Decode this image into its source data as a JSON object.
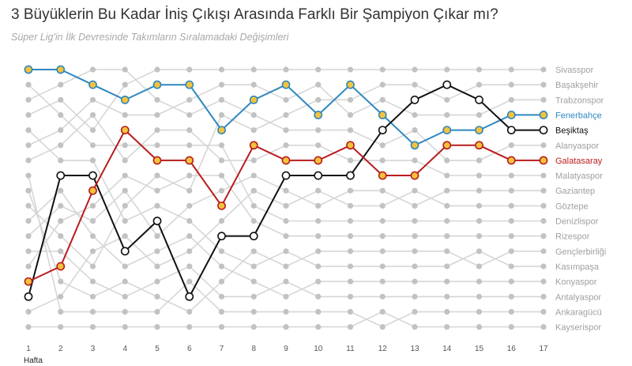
{
  "title": "3 Büyüklerin Bu Kadar İniş Çıkışı Arasında Farklı Bir Şampiyon Çıkar mı?",
  "subtitle": "Süper Lig'in İlk Devresinde Takımların Sıralamadaki Değişimleri",
  "colors": {
    "grey_line": "#d6d6d6",
    "grey_dot": "#c2c2c2",
    "fenerbahce_line": "#2f87bf",
    "fenerbahce_fill": "#f5c33b",
    "galatasaray_line": "#b81c1c",
    "galatasaray_fill": "#f5c33b",
    "besiktas_line": "#111111",
    "besiktas_fill": "#ffffff"
  },
  "chart_data": {
    "type": "line",
    "title": "3 Büyüklerin Bu Kadar İniş Çıkışı Arasında Farklı Bir Şampiyon Çıkar mı?",
    "subtitle": "Süper Lig'in İlk Devresinde Takımların Sıralamadaki Değişimleri",
    "xlabel": "Hafta",
    "ylabel": "",
    "x": [
      1,
      2,
      3,
      4,
      5,
      6,
      7,
      8,
      9,
      10,
      11,
      12,
      13,
      14,
      15,
      16,
      17
    ],
    "ylim": [
      1,
      18
    ],
    "y_inverted": true,
    "grid": false,
    "final_rank_labels": [
      "Sivasspor",
      "Başakşehir",
      "Trabzonspor",
      "Fenerbahçe",
      "Beşiktaş",
      "Alanyaspor",
      "Galatasaray",
      "Malatyaspor",
      "Gaziantep",
      "Göztepe",
      "Denizlispor",
      "Rizespor",
      "Gençlerbirliği",
      "Kasımpaşa",
      "Konyaspor",
      "Antalyaspor",
      "Ankaragücü",
      "Kayserispor"
    ],
    "series": [
      {
        "name": "Fenerbahçe",
        "highlight": true,
        "values": [
          1,
          1,
          2,
          3,
          2,
          2,
          5,
          3,
          2,
          4,
          2,
          4,
          6,
          5,
          5,
          4,
          4
        ]
      },
      {
        "name": "Beşiktaş",
        "highlight": true,
        "values": [
          16,
          8,
          8,
          13,
          11,
          16,
          12,
          12,
          8,
          8,
          8,
          5,
          3,
          2,
          3,
          5,
          5
        ]
      },
      {
        "name": "Galatasaray",
        "highlight": true,
        "values": [
          15,
          14,
          9,
          5,
          7,
          7,
          10,
          6,
          7,
          7,
          6,
          8,
          8,
          6,
          6,
          7,
          7
        ]
      },
      {
        "name": "Sivasspor",
        "highlight": false,
        "values": [
          4,
          3,
          5,
          2,
          1,
          1,
          1,
          1,
          1,
          1,
          1,
          1,
          1,
          1,
          1,
          1,
          1
        ]
      },
      {
        "name": "Başakşehir",
        "highlight": false,
        "values": [
          10,
          12,
          14,
          10,
          8,
          9,
          4,
          5,
          4,
          3,
          3,
          2,
          2,
          3,
          2,
          2,
          2
        ]
      },
      {
        "name": "Trabzonspor",
        "highlight": false,
        "values": [
          6,
          5,
          3,
          4,
          4,
          3,
          2,
          2,
          3,
          2,
          4,
          3,
          4,
          4,
          4,
          3,
          3
        ]
      },
      {
        "name": "Alanyaspor",
        "highlight": false,
        "values": [
          3,
          2,
          1,
          1,
          3,
          4,
          3,
          4,
          5,
          5,
          5,
          6,
          5,
          7,
          7,
          6,
          6
        ]
      },
      {
        "name": "Malatyaspor",
        "highlight": false,
        "values": [
          7,
          6,
          4,
          7,
          5,
          5,
          7,
          7,
          6,
          6,
          7,
          7,
          7,
          8,
          8,
          8,
          8
        ]
      },
      {
        "name": "Gaziantep",
        "highlight": false,
        "values": [
          12,
          10,
          11,
          9,
          12,
          10,
          9,
          8,
          9,
          10,
          9,
          9,
          10,
          9,
          9,
          9,
          9
        ]
      },
      {
        "name": "Göztepe",
        "highlight": false,
        "values": [
          17,
          16,
          13,
          12,
          14,
          13,
          11,
          9,
          10,
          9,
          10,
          10,
          9,
          10,
          10,
          10,
          10
        ]
      },
      {
        "name": "Denizlispor",
        "highlight": false,
        "values": [
          2,
          4,
          6,
          6,
          6,
          6,
          6,
          10,
          11,
          11,
          11,
          11,
          11,
          11,
          11,
          11,
          11
        ]
      },
      {
        "name": "Rizespor",
        "highlight": false,
        "values": [
          14,
          11,
          10,
          8,
          9,
          8,
          8,
          11,
          12,
          12,
          12,
          12,
          12,
          12,
          12,
          12,
          12
        ]
      },
      {
        "name": "Gençlerbirliği",
        "highlight": false,
        "values": [
          9,
          15,
          16,
          15,
          16,
          17,
          15,
          13,
          14,
          13,
          13,
          13,
          13,
          13,
          14,
          13,
          13
        ]
      },
      {
        "name": "Kasımpaşa",
        "highlight": false,
        "values": [
          5,
          7,
          7,
          11,
          10,
          11,
          13,
          14,
          13,
          14,
          14,
          14,
          14,
          14,
          13,
          14,
          14
        ]
      },
      {
        "name": "Konyaspor",
        "highlight": false,
        "values": [
          11,
          9,
          12,
          14,
          13,
          12,
          14,
          15,
          16,
          15,
          15,
          15,
          15,
          15,
          15,
          15,
          15
        ]
      },
      {
        "name": "Antalyaspor",
        "highlight": false,
        "values": [
          13,
          13,
          15,
          16,
          15,
          14,
          16,
          16,
          15,
          16,
          16,
          16,
          16,
          16,
          16,
          16,
          16
        ]
      },
      {
        "name": "Ankaragücü",
        "highlight": false,
        "values": [
          8,
          17,
          17,
          17,
          17,
          15,
          17,
          17,
          17,
          17,
          17,
          18,
          17,
          17,
          17,
          17,
          17
        ]
      },
      {
        "name": "Kayserispor",
        "highlight": false,
        "values": [
          18,
          18,
          18,
          18,
          18,
          18,
          18,
          18,
          18,
          18,
          18,
          17,
          18,
          18,
          18,
          18,
          18
        ]
      }
    ]
  }
}
